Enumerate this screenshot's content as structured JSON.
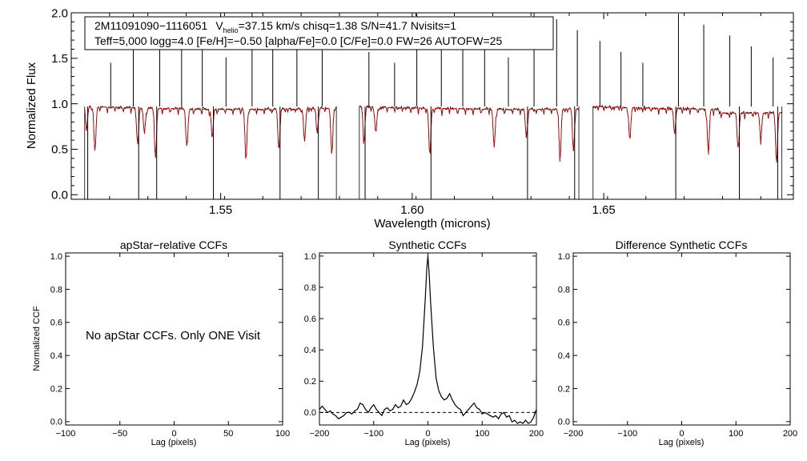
{
  "colors": {
    "observed": "#000000",
    "model": "#cc0000",
    "axis": "#000000",
    "background": "#ffffff"
  },
  "chart_data": [
    {
      "type": "line",
      "panel": "spectrum",
      "title": "",
      "xlabel": "Wavelength (microns)",
      "ylabel": "Normalized Flux",
      "xlim": [
        1.511,
        1.6995
      ],
      "ylim": [
        -0.05,
        2.0
      ],
      "xticks": [
        1.55,
        1.6,
        1.65
      ],
      "xtick_labels": [
        "1.55",
        "1.60",
        "1.65"
      ],
      "yticks": [
        0.0,
        0.5,
        1.0,
        1.5,
        2.0
      ],
      "ytick_labels": [
        "0.0",
        "0.5",
        "1.0",
        "1.5",
        "2.0"
      ],
      "annotation": {
        "star_id": "2M11091090−1116051",
        "v_sym": "V",
        "v_sub": "helio",
        "rest1": "=37.15 km/s  chisq=1.38  S/N=41.7  Nvisits=1",
        "line2": "Teff=5,000 logg=4.0 [Fe/H]=−0.50 [alpha/Fe]=0.0 [C/Fe]=0.0 FW=26 AUTOFW=25"
      },
      "detector_segments": [
        [
          1.5145,
          1.5802
        ],
        [
          1.5862,
          1.6435
        ],
        [
          1.6472,
          1.6965
        ]
      ],
      "continuum_level": 0.97,
      "series": [
        {
          "name": "observed spectrum",
          "color": "#000000",
          "noise": 0.025
        },
        {
          "name": "synthetic model",
          "color": "#cc0000",
          "noise": 0.008
        }
      ],
      "emission_spikes": [
        1.5213,
        1.5272,
        1.5341,
        1.5398,
        1.5452,
        1.5514,
        1.5582,
        1.5636,
        1.5699,
        1.5765,
        1.5887,
        1.5954,
        1.6012,
        1.6076,
        1.6132,
        1.6189,
        1.6251,
        1.6318,
        1.6377,
        1.6431,
        1.649,
        1.6545,
        1.6602,
        1.6695,
        1.6761,
        1.6829,
        1.6885,
        1.6942
      ],
      "absorption_dips": [
        1.515,
        1.5172,
        1.5283,
        1.5301,
        1.533,
        1.5412,
        1.5478,
        1.5566,
        1.5652,
        1.5719,
        1.5752,
        1.579,
        1.5874,
        1.5905,
        1.6046,
        1.6214,
        1.6298,
        1.6386,
        1.6421,
        1.6568,
        1.6685,
        1.6773,
        1.6851,
        1.691,
        1.6951
      ]
    },
    {
      "type": "line",
      "panel": "apstar-ccf",
      "title": "apStar−relative CCFs",
      "xlabel": "Lag (pixels)",
      "ylabel": "Normalized CCF",
      "xlim": [
        -100,
        100
      ],
      "ylim": [
        -0.02,
        1.02
      ],
      "xticks": [
        -100,
        -50,
        0,
        50,
        100
      ],
      "xtick_labels": [
        "−100",
        "−50",
        "0",
        "50",
        "100"
      ],
      "yticks": [
        0.0,
        0.2,
        0.4,
        0.6,
        0.8,
        1.0
      ],
      "ytick_labels": [
        "0.0",
        "0.2",
        "0.4",
        "0.6",
        "0.8",
        "1.0"
      ],
      "message": "No apStar CCFs.  Only ONE Visit",
      "series": []
    },
    {
      "type": "line",
      "panel": "synthetic-ccf",
      "title": "Synthetic CCFs",
      "xlabel": "Lag (pixels)",
      "ylabel": "",
      "xlim": [
        -200,
        200
      ],
      "ylim": [
        -0.08,
        1.02
      ],
      "xticks": [
        -200,
        -100,
        0,
        100,
        200
      ],
      "xtick_labels": [
        "−200",
        "−100",
        "0",
        "100",
        "200"
      ],
      "yticks": [
        0.0,
        0.2,
        0.4,
        0.6,
        0.8,
        1.0
      ],
      "ytick_labels": [
        "0.0",
        "0.2",
        "0.4",
        "0.6",
        "0.8",
        "1.0"
      ],
      "reference_line": 0.0,
      "series": [
        {
          "name": "synthetic CCF",
          "x": [
            -200,
            -195,
            -190,
            -185,
            -180,
            -175,
            -170,
            -165,
            -160,
            -155,
            -150,
            -145,
            -140,
            -135,
            -130,
            -125,
            -120,
            -115,
            -110,
            -105,
            -100,
            -95,
            -90,
            -85,
            -80,
            -75,
            -70,
            -65,
            -60,
            -55,
            -50,
            -45,
            -40,
            -35,
            -30,
            -25,
            -20,
            -15,
            -10,
            -5,
            -2,
            0,
            2,
            5,
            10,
            15,
            20,
            25,
            30,
            35,
            40,
            45,
            50,
            55,
            60,
            65,
            70,
            75,
            80,
            85,
            90,
            95,
            100,
            105,
            110,
            115,
            120,
            125,
            130,
            135,
            140,
            145,
            150,
            155,
            160,
            165,
            170,
            175,
            180,
            185,
            190,
            195,
            200
          ],
          "y": [
            0.02,
            0.04,
            0.02,
            0.0,
            0.01,
            -0.01,
            -0.02,
            -0.04,
            -0.03,
            -0.02,
            0.0,
            0.0,
            -0.01,
            0.01,
            0.02,
            0.06,
            0.05,
            0.02,
            0.0,
            0.03,
            0.05,
            0.02,
            0.0,
            -0.02,
            0.02,
            0.03,
            0.01,
            0.02,
            0.05,
            0.03,
            0.04,
            0.08,
            0.05,
            0.06,
            0.09,
            0.13,
            0.18,
            0.26,
            0.42,
            0.72,
            0.92,
            1.0,
            0.9,
            0.7,
            0.42,
            0.22,
            0.14,
            0.1,
            0.08,
            0.09,
            0.12,
            0.08,
            0.05,
            0.03,
            0.02,
            -0.02,
            0.0,
            0.02,
            0.04,
            0.06,
            0.03,
            0.02,
            -0.01,
            0.0,
            -0.01,
            -0.02,
            -0.03,
            -0.02,
            -0.04,
            -0.01,
            0.0,
            -0.03,
            -0.02,
            -0.06,
            -0.05,
            -0.07,
            -0.06,
            -0.07,
            -0.05,
            -0.07,
            -0.06,
            -0.03,
            0.02
          ]
        }
      ]
    },
    {
      "type": "line",
      "panel": "difference-ccf",
      "title": "Difference Synthetic CCFs",
      "xlabel": "Lag (pixels)",
      "ylabel": "",
      "xlim": [
        -200,
        200
      ],
      "ylim": [
        -0.02,
        1.02
      ],
      "xticks": [
        -200,
        -100,
        0,
        100,
        200
      ],
      "xtick_labels": [
        "−200",
        "−100",
        "0",
        "100",
        "200"
      ],
      "yticks": [
        0.0,
        0.2,
        0.4,
        0.6,
        0.8,
        1.0
      ],
      "ytick_labels": [
        "0.0",
        "0.2",
        "0.4",
        "0.6",
        "0.8",
        "1.0"
      ],
      "series": []
    }
  ]
}
